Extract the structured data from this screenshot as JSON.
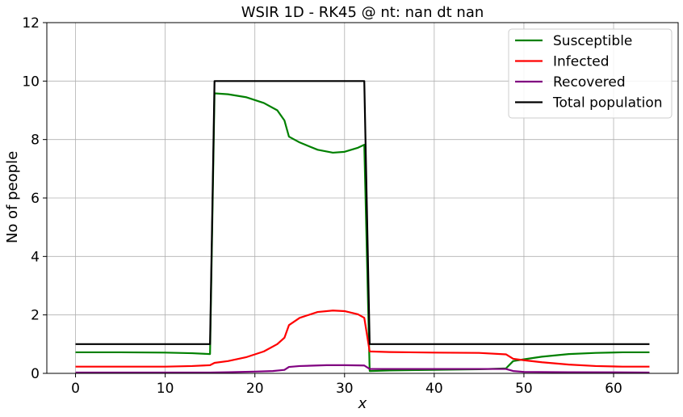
{
  "chart_data": {
    "type": "line",
    "title": "WSIR 1D - RK45 @ nt: nan dt nan",
    "xlabel": "x",
    "ylabel": "No of people",
    "xlim": [
      -3.2,
      67.2
    ],
    "ylim": [
      0,
      12
    ],
    "xticks": [
      0,
      10,
      20,
      30,
      40,
      50,
      60
    ],
    "yticks": [
      0,
      2,
      4,
      6,
      8,
      10,
      12
    ],
    "grid": true,
    "legend_position": "top-right",
    "series": [
      {
        "name": "Susceptible",
        "color": "#008000",
        "points": [
          [
            0,
            0.72
          ],
          [
            5,
            0.72
          ],
          [
            10,
            0.71
          ],
          [
            13,
            0.69
          ],
          [
            15,
            0.66
          ],
          [
            15.5,
            9.58
          ],
          [
            17,
            9.55
          ],
          [
            19,
            9.45
          ],
          [
            21,
            9.25
          ],
          [
            22.5,
            9.0
          ],
          [
            23.3,
            8.65
          ],
          [
            23.8,
            8.1
          ],
          [
            25,
            7.9
          ],
          [
            27,
            7.65
          ],
          [
            28.7,
            7.55
          ],
          [
            30,
            7.58
          ],
          [
            31.5,
            7.72
          ],
          [
            32.2,
            7.82
          ],
          [
            32.8,
            0.08
          ],
          [
            35,
            0.1
          ],
          [
            40,
            0.12
          ],
          [
            45,
            0.14
          ],
          [
            48,
            0.17
          ],
          [
            48.8,
            0.42
          ],
          [
            50,
            0.48
          ],
          [
            52,
            0.57
          ],
          [
            55,
            0.66
          ],
          [
            58,
            0.7
          ],
          [
            61,
            0.72
          ],
          [
            64,
            0.72
          ]
        ]
      },
      {
        "name": "Infected",
        "color": "#ff0000",
        "points": [
          [
            0,
            0.23
          ],
          [
            10,
            0.23
          ],
          [
            13,
            0.25
          ],
          [
            15,
            0.28
          ],
          [
            15.5,
            0.36
          ],
          [
            17,
            0.42
          ],
          [
            19,
            0.55
          ],
          [
            21,
            0.75
          ],
          [
            22.5,
            1.0
          ],
          [
            23.3,
            1.22
          ],
          [
            23.8,
            1.65
          ],
          [
            25,
            1.9
          ],
          [
            27,
            2.1
          ],
          [
            28.7,
            2.15
          ],
          [
            30,
            2.13
          ],
          [
            31.5,
            2.02
          ],
          [
            32.2,
            1.9
          ],
          [
            32.8,
            0.75
          ],
          [
            35,
            0.73
          ],
          [
            40,
            0.71
          ],
          [
            45,
            0.7
          ],
          [
            48,
            0.65
          ],
          [
            48.8,
            0.5
          ],
          [
            50,
            0.45
          ],
          [
            52,
            0.38
          ],
          [
            55,
            0.3
          ],
          [
            58,
            0.25
          ],
          [
            61,
            0.23
          ],
          [
            64,
            0.23
          ]
        ]
      },
      {
        "name": "Recovered",
        "color": "#800080",
        "points": [
          [
            0,
            0.03
          ],
          [
            10,
            0.03
          ],
          [
            15,
            0.03
          ],
          [
            17,
            0.04
          ],
          [
            20,
            0.06
          ],
          [
            22,
            0.08
          ],
          [
            23.3,
            0.12
          ],
          [
            23.8,
            0.22
          ],
          [
            25,
            0.25
          ],
          [
            28,
            0.28
          ],
          [
            30,
            0.28
          ],
          [
            32.2,
            0.27
          ],
          [
            32.8,
            0.15
          ],
          [
            40,
            0.15
          ],
          [
            45,
            0.15
          ],
          [
            48,
            0.15
          ],
          [
            48.8,
            0.08
          ],
          [
            50,
            0.05
          ],
          [
            55,
            0.04
          ],
          [
            64,
            0.03
          ]
        ]
      },
      {
        "name": "Total population",
        "color": "#000000",
        "points": [
          [
            0,
            1
          ],
          [
            15,
            1
          ],
          [
            15.5,
            10
          ],
          [
            32.2,
            10
          ],
          [
            32.8,
            1
          ],
          [
            64,
            1
          ]
        ]
      }
    ]
  }
}
